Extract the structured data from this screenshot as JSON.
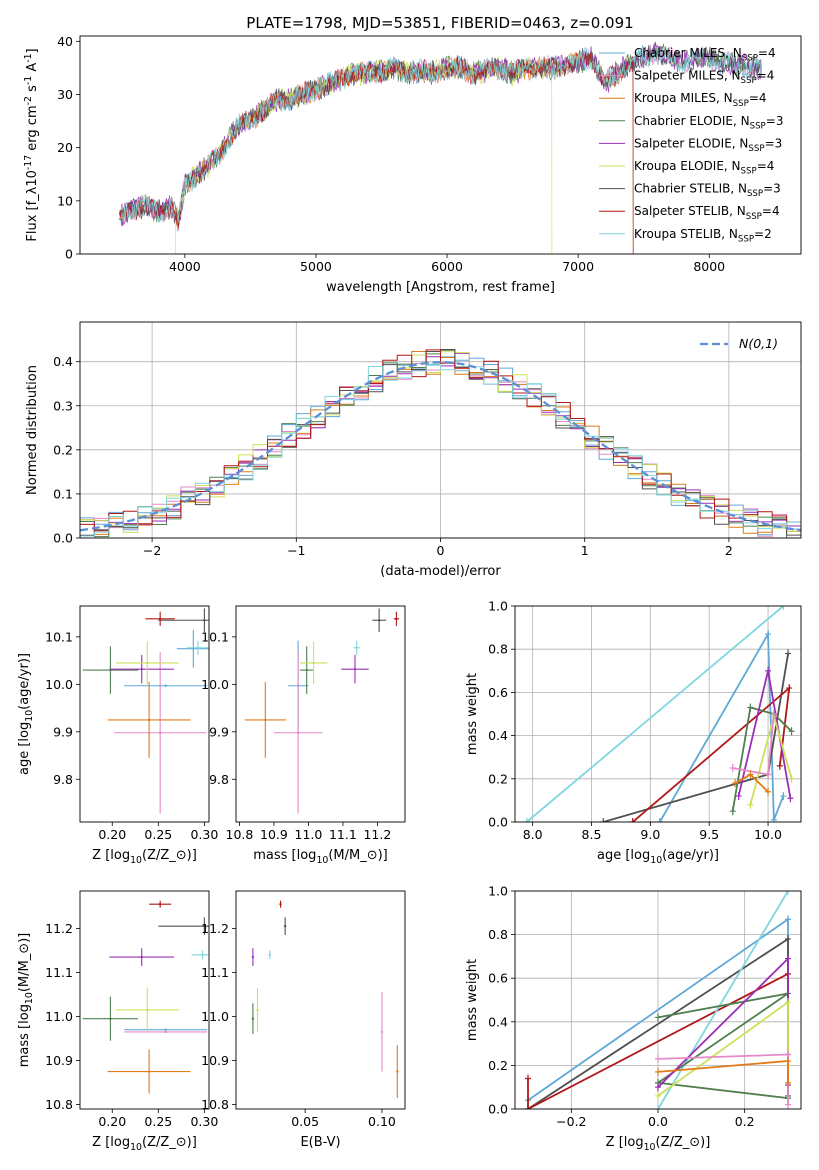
{
  "title": "PLATE=1798, MJD=53851, FIBERID=0463, z=0.091",
  "models": [
    {
      "key": "chab_miles",
      "label": "Chabrier MILES, N_{SSP}=4",
      "color": "#5fa8d8"
    },
    {
      "key": "salp_miles",
      "label": "Salpeter MILES, N_{SSP}=4",
      "color": "#e48ac8"
    },
    {
      "key": "krou_miles",
      "label": "Kroupa MILES, N_{SSP}=4",
      "color": "#e07b1a"
    },
    {
      "key": "chab_elodie",
      "label": "Chabrier ELODIE, N_{SSP}=3",
      "color": "#4f7f4f"
    },
    {
      "key": "salp_elodie",
      "label": "Salpeter ELODIE, N_{SSP}=3",
      "color": "#9a2fb5"
    },
    {
      "key": "krou_elodie",
      "label": "Kroupa ELODIE, N_{SSP}=4",
      "color": "#cde05a"
    },
    {
      "key": "chab_stelib",
      "label": "Chabrier STELIB, N_{SSP}=3",
      "color": "#505050"
    },
    {
      "key": "salp_stelib",
      "label": "Salpeter STELIB, N_{SSP}=4",
      "color": "#b01818"
    },
    {
      "key": "krou_stelib",
      "label": "Kroupa STELIB, N_{SSP}=2",
      "color": "#7fd6de"
    }
  ],
  "chart_data": [
    {
      "id": "spectrum",
      "type": "line",
      "xlabel": "wavelength [Angstrom, rest frame]",
      "ylabel": "Flux [f_λ10^{-17} erg cm^{-2} s^{-1} A^{-1}]",
      "xlim": [
        3200,
        8700
      ],
      "ylim": [
        0,
        41
      ],
      "xticks": [
        4000,
        5000,
        6000,
        7000,
        8000
      ],
      "yticks": [
        0,
        10,
        20,
        30,
        40
      ],
      "continuum": [
        [
          3500,
          7
        ],
        [
          3600,
          8.5
        ],
        [
          3700,
          9
        ],
        [
          3800,
          8
        ],
        [
          3900,
          9
        ],
        [
          3950,
          6
        ],
        [
          4000,
          13
        ],
        [
          4100,
          15
        ],
        [
          4200,
          17
        ],
        [
          4300,
          20
        ],
        [
          4400,
          24
        ],
        [
          4500,
          25
        ],
        [
          4600,
          27
        ],
        [
          4700,
          29
        ],
        [
          4800,
          29
        ],
        [
          4900,
          30
        ],
        [
          5000,
          31
        ],
        [
          5100,
          32
        ],
        [
          5200,
          33
        ],
        [
          5300,
          34
        ],
        [
          5400,
          34
        ],
        [
          5500,
          34.5
        ],
        [
          5600,
          35
        ],
        [
          5700,
          34
        ],
        [
          5800,
          34.5
        ],
        [
          5900,
          34
        ],
        [
          6000,
          35
        ],
        [
          6100,
          35
        ],
        [
          6200,
          34
        ],
        [
          6300,
          34.5
        ],
        [
          6400,
          35
        ],
        [
          6500,
          34
        ],
        [
          6600,
          35
        ],
        [
          6700,
          35
        ],
        [
          6800,
          35
        ],
        [
          6900,
          35.5
        ],
        [
          7000,
          36
        ],
        [
          7100,
          37
        ],
        [
          7200,
          32
        ],
        [
          7300,
          34
        ],
        [
          7400,
          36
        ],
        [
          7500,
          37
        ],
        [
          7600,
          38
        ],
        [
          7700,
          37
        ],
        [
          7800,
          36
        ],
        [
          7900,
          37
        ],
        [
          8000,
          37
        ],
        [
          8100,
          36
        ],
        [
          8200,
          36
        ],
        [
          8300,
          35
        ],
        [
          8400,
          35
        ]
      ],
      "grid": false,
      "legend_position": "upper-right"
    },
    {
      "id": "residuals",
      "type": "histogram",
      "xlabel": "(data-model)/error",
      "ylabel": "Normed distribution",
      "xlim": [
        -2.5,
        2.5
      ],
      "ylim": [
        0,
        0.49
      ],
      "xticks": [
        -2,
        -1,
        0,
        1,
        2
      ],
      "yticks": [
        0.0,
        0.1,
        0.2,
        0.3,
        0.4
      ],
      "reference": {
        "label": "N(0,1)",
        "mu": 0,
        "sigma": 1,
        "color": "#5b8fd6"
      },
      "bin_width": 0.1,
      "grid": true,
      "legend_position": "upper-right"
    },
    {
      "id": "age_vs_Z",
      "type": "scatter",
      "xlabel": "Z [log_{10}(Z/Z_⊙)]",
      "ylabel": "age  [log_{10}(age/yr)]",
      "xlim": [
        0.165,
        0.305
      ],
      "ylim": [
        9.71,
        10.165
      ],
      "xticks": [
        0.2,
        0.25,
        0.3
      ],
      "yticks": [
        9.8,
        9.9,
        10.0,
        10.1
      ],
      "points": [
        {
          "model": "chab_miles",
          "x": 0.288,
          "xerr": 0.018,
          "y": 10.075,
          "yerr": 0.04
        },
        {
          "model": "salp_miles",
          "x": 0.252,
          "xerr": 0.05,
          "y": 9.898,
          "yerr": 0.17
        },
        {
          "model": "krou_miles",
          "x": 0.24,
          "xerr": 0.045,
          "y": 9.925,
          "yerr": 0.08
        },
        {
          "model": "chab_elodie",
          "x": 0.198,
          "xerr": 0.03,
          "y": 10.03,
          "yerr": 0.05
        },
        {
          "model": "salp_elodie",
          "x": 0.232,
          "xerr": 0.035,
          "y": 10.032,
          "yerr": 0.03
        },
        {
          "model": "krou_elodie",
          "x": 0.238,
          "xerr": 0.034,
          "y": 10.045,
          "yerr": 0.045
        },
        {
          "model": "chab_stelib",
          "x": 0.3,
          "xerr": 0.05,
          "y": 10.135,
          "yerr": 0.025
        },
        {
          "model": "salp_stelib",
          "x": 0.252,
          "xerr": 0.016,
          "y": 10.138,
          "yerr": 0.015
        },
        {
          "model": "krou_stelib",
          "x": 0.293,
          "xerr": 0.012,
          "y": 10.077,
          "yerr": 0.015
        },
        {
          "model": "chab_miles",
          "x": 0.258,
          "xerr": 0.045,
          "y": 9.997,
          "yerr": 0.0
        }
      ]
    },
    {
      "id": "age_vs_mass",
      "type": "scatter",
      "xlabel": "mass [log_{10}(M/M_⊙)]",
      "ylabel": "",
      "xlim": [
        10.79,
        11.28
      ],
      "ylim": [
        9.71,
        10.165
      ],
      "xticks": [
        10.8,
        10.9,
        11.0,
        11.1,
        11.2
      ],
      "yticks": [
        9.8,
        9.9,
        10.0,
        10.1
      ],
      "points": [
        {
          "model": "chab_miles",
          "x": 10.97,
          "xerr": 0.03,
          "y": 9.997,
          "yerr": 0.095
        },
        {
          "model": "salp_miles",
          "x": 10.97,
          "xerr": 0.07,
          "y": 9.898,
          "yerr": 0.17
        },
        {
          "model": "krou_miles",
          "x": 10.875,
          "xerr": 0.06,
          "y": 9.925,
          "yerr": 0.08
        },
        {
          "model": "chab_elodie",
          "x": 10.995,
          "xerr": 0.02,
          "y": 10.03,
          "yerr": 0.05
        },
        {
          "model": "salp_elodie",
          "x": 11.135,
          "xerr": 0.04,
          "y": 10.032,
          "yerr": 0.03
        },
        {
          "model": "krou_elodie",
          "x": 11.015,
          "xerr": 0.04,
          "y": 10.045,
          "yerr": 0.045
        },
        {
          "model": "chab_stelib",
          "x": 11.205,
          "xerr": 0.02,
          "y": 10.135,
          "yerr": 0.025
        },
        {
          "model": "salp_stelib",
          "x": 11.255,
          "xerr": 0.008,
          "y": 10.138,
          "yerr": 0.015
        },
        {
          "model": "krou_stelib",
          "x": 11.14,
          "xerr": 0.01,
          "y": 10.077,
          "yerr": 0.015
        }
      ]
    },
    {
      "id": "weight_vs_age",
      "type": "line",
      "xlabel": "age  [log_{10}(age/yr)]",
      "ylabel": "mass weight",
      "xlim": [
        7.85,
        10.28
      ],
      "ylim": [
        0,
        1
      ],
      "xticks": [
        8.0,
        8.5,
        9.0,
        9.5,
        10.0
      ],
      "yticks": [
        0.0,
        0.2,
        0.4,
        0.6,
        0.8,
        1.0
      ],
      "series": [
        {
          "model": "krou_stelib",
          "x": [
            7.95,
            10.13
          ],
          "y": [
            0.0,
            1.0
          ]
        },
        {
          "model": "chab_miles",
          "x": [
            9.08,
            10.0,
            10.05,
            10.13
          ],
          "y": [
            0.0,
            0.87,
            0.01,
            0.12
          ]
        },
        {
          "model": "chab_stelib",
          "x": [
            8.6,
            10.0,
            10.17
          ],
          "y": [
            0.0,
            0.22,
            0.78
          ]
        },
        {
          "model": "salp_stelib",
          "x": [
            8.85,
            10.18,
            10.1
          ],
          "y": [
            0.0,
            0.62,
            0.26
          ]
        },
        {
          "model": "chab_elodie",
          "x": [
            9.7,
            9.85,
            10.05,
            10.2
          ],
          "y": [
            0.05,
            0.53,
            0.5,
            0.42
          ]
        },
        {
          "model": "salp_elodie",
          "x": [
            9.75,
            10.0,
            10.19
          ],
          "y": [
            0.12,
            0.7,
            0.11
          ]
        },
        {
          "model": "krou_elodie",
          "x": [
            9.85,
            10.05,
            10.2
          ],
          "y": [
            0.08,
            0.49,
            0.2
          ]
        },
        {
          "model": "salp_miles",
          "x": [
            9.7,
            10.0,
            10.05
          ],
          "y": [
            0.25,
            0.22,
            0.5
          ]
        },
        {
          "model": "krou_miles",
          "x": [
            9.72,
            9.85,
            10.0
          ],
          "y": [
            0.18,
            0.22,
            0.14
          ]
        }
      ],
      "grid": true
    },
    {
      "id": "mass_vs_Z",
      "type": "scatter",
      "xlabel": "Z [log_{10}(Z/Z_⊙)]",
      "ylabel": "mass [log_{10}(M/M_⊙)]",
      "xlim": [
        0.165,
        0.305
      ],
      "ylim": [
        10.79,
        11.285
      ],
      "xticks": [
        0.2,
        0.25,
        0.3
      ],
      "yticks": [
        10.8,
        10.9,
        11.0,
        11.1,
        11.2
      ],
      "points": [
        {
          "model": "chab_miles",
          "x": 0.258,
          "xerr": 0.045,
          "y": 10.97,
          "yerr": 0.0
        },
        {
          "model": "salp_miles",
          "x": 0.258,
          "xerr": 0.045,
          "y": 10.965,
          "yerr": 0.0
        },
        {
          "model": "krou_miles",
          "x": 0.24,
          "xerr": 0.045,
          "y": 10.875,
          "yerr": 0.05
        },
        {
          "model": "chab_elodie",
          "x": 0.198,
          "xerr": 0.03,
          "y": 10.995,
          "yerr": 0.05
        },
        {
          "model": "salp_elodie",
          "x": 0.232,
          "xerr": 0.035,
          "y": 11.135,
          "yerr": 0.02
        },
        {
          "model": "krou_elodie",
          "x": 0.238,
          "xerr": 0.034,
          "y": 11.015,
          "yerr": 0.05
        },
        {
          "model": "chab_stelib",
          "x": 0.3,
          "xerr": 0.05,
          "y": 11.205,
          "yerr": 0.02
        },
        {
          "model": "salp_stelib",
          "x": 0.252,
          "xerr": 0.012,
          "y": 11.255,
          "yerr": 0.008
        },
        {
          "model": "krou_stelib",
          "x": 0.298,
          "xerr": 0.012,
          "y": 11.14,
          "yerr": 0.01
        }
      ]
    },
    {
      "id": "mass_vs_ebv",
      "type": "scatter",
      "xlabel": "E(B-V)",
      "ylabel": "",
      "xlim": [
        0.005,
        0.115
      ],
      "ylim": [
        10.79,
        11.285
      ],
      "xticks": [
        0.05,
        0.1
      ],
      "yticks": [
        10.8,
        10.9,
        11.0,
        11.1,
        11.2
      ],
      "points": [
        {
          "model": "salp_stelib",
          "x": 0.034,
          "y": 11.255,
          "yerr": 0.008
        },
        {
          "model": "chab_stelib",
          "x": 0.037,
          "y": 11.205,
          "yerr": 0.02
        },
        {
          "model": "krou_stelib",
          "x": 0.027,
          "y": 11.14,
          "yerr": 0.01
        },
        {
          "model": "salp_elodie",
          "x": 0.016,
          "y": 11.135,
          "yerr": 0.02
        },
        {
          "model": "krou_elodie",
          "x": 0.019,
          "y": 11.015,
          "yerr": 0.05
        },
        {
          "model": "chab_elodie",
          "x": 0.016,
          "y": 10.995,
          "yerr": 0.035
        },
        {
          "model": "salp_miles",
          "x": 0.1,
          "y": 10.965,
          "yerr": 0.09
        },
        {
          "model": "krou_miles",
          "x": 0.11,
          "y": 10.875,
          "yerr": 0.06
        }
      ]
    },
    {
      "id": "weight_vs_Z",
      "type": "line",
      "xlabel": "Z [log_{10}(Z/Z_⊙)]",
      "ylabel": "mass weight",
      "xlim": [
        -0.33,
        0.33
      ],
      "ylim": [
        0,
        1
      ],
      "xticks": [
        -0.2,
        0.0,
        0.2
      ],
      "yticks": [
        0.0,
        0.2,
        0.4,
        0.6,
        0.8,
        1.0
      ],
      "series": [
        {
          "model": "chab_miles",
          "x": [
            -0.3,
            0.3,
            0.3
          ],
          "y": [
            0.04,
            0.87,
            0.05
          ]
        },
        {
          "model": "chab_stelib",
          "x": [
            -0.3,
            0.3,
            0.3
          ],
          "y": [
            0.0,
            0.78,
            0.06
          ]
        },
        {
          "model": "salp_stelib",
          "x": [
            -0.3,
            -0.3,
            0.3,
            0.3
          ],
          "y": [
            0.14,
            0.0,
            0.62,
            0.25
          ]
        },
        {
          "model": "krou_stelib",
          "x": [
            0.0,
            0.3
          ],
          "y": [
            0.0,
            1.0
          ]
        },
        {
          "model": "chab_elodie",
          "x": [
            0.0,
            0.3,
            0.0,
            0.3
          ],
          "y": [
            0.42,
            0.53,
            0.12,
            0.05
          ]
        },
        {
          "model": "salp_elodie",
          "x": [
            0.0,
            0.3,
            0.3
          ],
          "y": [
            0.1,
            0.69,
            0.11
          ]
        },
        {
          "model": "krou_elodie",
          "x": [
            0.0,
            0.3,
            0.3
          ],
          "y": [
            0.06,
            0.49,
            0.2
          ]
        },
        {
          "model": "salp_miles",
          "x": [
            0.0,
            0.3,
            0.3
          ],
          "y": [
            0.23,
            0.25,
            0.02
          ]
        },
        {
          "model": "krou_miles",
          "x": [
            0.0,
            0.3,
            0.3
          ],
          "y": [
            0.17,
            0.22,
            0.12
          ]
        }
      ],
      "grid": true
    }
  ]
}
